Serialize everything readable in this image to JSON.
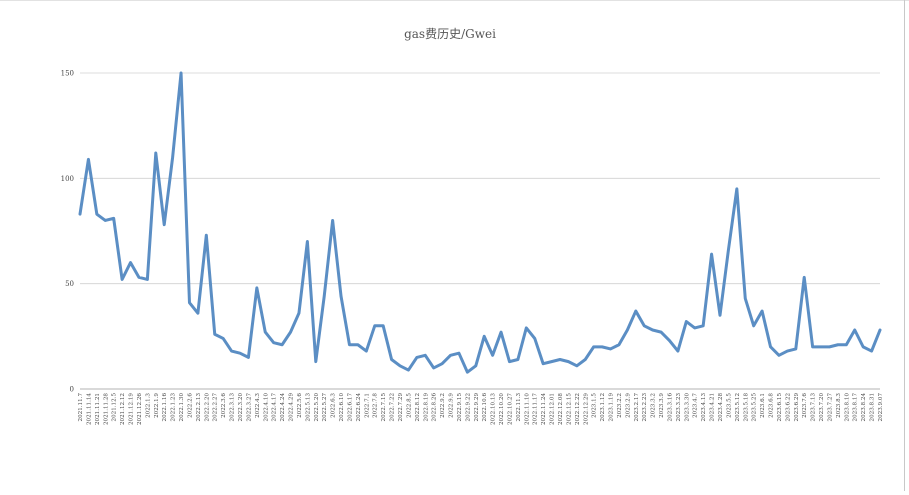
{
  "chart_data": {
    "type": "line",
    "title": "gas费历史/Gwei",
    "xlabel": "",
    "ylabel": "",
    "ylim": [
      0,
      150
    ],
    "yticks": [
      0,
      50,
      100,
      150
    ],
    "grid": "horizontal",
    "legend": "none",
    "line_color": "#5b8ec4",
    "grid_color": "#d0d0d0",
    "categories": [
      "2021.11.7",
      "2021.11.14",
      "2021.11.21",
      "2021.11.28",
      "2021.12.5",
      "2021.12.12",
      "2021.12.19",
      "2021.12.26",
      "2022.1.2",
      "2022.1.9",
      "2022.1.16",
      "2022.1.23",
      "2022.1.30",
      "2022.2.6",
      "2022.2.13",
      "2022.2.20",
      "2022.2.27",
      "2022.3.6",
      "2022.3.13",
      "2022.3.20",
      "2022.3.27",
      "2022.4.3",
      "2022.4.10",
      "2022.4.17",
      "2022.4.24",
      "2022.5.1",
      "2022.5.8",
      "2022.5.15",
      "2022.5.22",
      "2022.5.29",
      "2022.6.5",
      "2022.6.12",
      "2022.6.19",
      "2022.6.26",
      "2022.7.3",
      "2022.7.10",
      "2022.7.17",
      "2022.7.24",
      "2022.7.31",
      "2022.8.7",
      "2022.8.14",
      "2022.8.21",
      "2022.8.28",
      "2022.9.4",
      "2022.9.11",
      "2022.9.18",
      "2022.9.25",
      "2022.10.2",
      "2022.10.9",
      "2022.10.16",
      "2022.10.23",
      "2022.10.30",
      "2022.11.6",
      "2022.11.13",
      "2022.11.20",
      "2022.11.27",
      "2022.12.4",
      "2022.12.11",
      "2022.12.18",
      "2022.12.25",
      "2023.1.1",
      "2023.1.8",
      "2023.1.15",
      "2023.1.22",
      "2023.1.29",
      "2023.2.5",
      "2023.2.12",
      "2023.2.19",
      "2023.2.26",
      "2023.3.5",
      "2023.3.12",
      "2023.3.19",
      "2023.3.26",
      "2023.4.2",
      "2023.4.9",
      "2023.4.16",
      "2023.4.23",
      "2023.4.30",
      "2023.5.7",
      "2023.5.14",
      "2023.5.21",
      "2023.5.28",
      "2023.6.4",
      "2023.6.11",
      "2023.6.18",
      "2023.6.25",
      "2023.7.2",
      "2023.7.9",
      "2023.7.16",
      "2023.7.23",
      "2023.7.30",
      "2023.8.6",
      "2023.8.13",
      "2023.8.20",
      "2023.8.27",
      "2023.9.3"
    ],
    "xtick_labels": [
      "2021.11.7",
      "2021.11.14",
      "2021.11.21",
      "2021.11.28",
      "2021.12.5",
      "2021.12.12",
      "2021.12.19",
      "2021.12.26",
      "2022.1.3",
      "2022.1.9",
      "2022.1.16",
      "2022.1.23",
      "2022.1.30",
      "2022.2.6",
      "2022.2.13",
      "2022.2.20",
      "2022.2.27",
      "2022.3.6",
      "2022.3.13",
      "2022.3.20",
      "2022.3.27",
      "2022.4.3",
      "2022.4.10",
      "2022.4.17",
      "2022.4.24",
      "2022.4.29",
      "2022.5.6",
      "2022.5.13",
      "2022.5.20",
      "2022.5.27",
      "2022.6.3",
      "2022.6.10",
      "2022.6.17",
      "2022.6.24",
      "2022.7.1",
      "2022.7.8",
      "2022.7.15",
      "2022.7.22",
      "2022.7.29",
      "2022.8.5",
      "2022.8.12",
      "2022.8.19",
      "2022.8.26",
      "2022.9.2",
      "2022.9.9",
      "2022.9.15",
      "2022.9.22",
      "2022.9.29",
      "2022.10.6",
      "2022.10.13",
      "2022.10.20",
      "2022.10.27",
      "2022.11.3",
      "2022.11.10",
      "2022.11.17",
      "2022.11.24",
      "2022.12.01",
      "2022.12.08",
      "2022.12.15",
      "2022.12.22",
      "2022.12.29",
      "2023.1.5",
      "2023.1.12",
      "2023.1.19",
      "2023.2.2",
      "2023.2.9",
      "2023.2.17",
      "2023.2.23",
      "2023.3.2",
      "2023.3.9",
      "2023.3.16",
      "2023.3.23",
      "2023.3.30",
      "2023.4.7",
      "2023.4.13",
      "2023.4.21",
      "2023.4.28",
      "2023.5.5",
      "2023.5.12",
      "2023.5.18",
      "2023.5.25",
      "2023.6.1",
      "2023.6.8",
      "2023.6.15",
      "2023.6.22",
      "2023.6.29",
      "2023.7.6",
      "2023.7.13",
      "2023.7.20",
      "2023.7.27",
      "2023.8.3",
      "2023.8.10",
      "2023.8.17",
      "2023.8.24",
      "2023.8.31",
      "2023.9.07"
    ],
    "series": [
      {
        "values": [
          83,
          109,
          83,
          80,
          81,
          52,
          60,
          53,
          52,
          112,
          78,
          110,
          150,
          41,
          36,
          73,
          26,
          24,
          18,
          17,
          15,
          48,
          27,
          22,
          21,
          27,
          36,
          70,
          13,
          44,
          80,
          44,
          21,
          21,
          18,
          30,
          30,
          14,
          11,
          9,
          15,
          16,
          10,
          12,
          16,
          17,
          8,
          11,
          25,
          16,
          27,
          13,
          14,
          29,
          24,
          12,
          13,
          14,
          13,
          11,
          14,
          20,
          20,
          19,
          21,
          28,
          37,
          30,
          28,
          27,
          23,
          18,
          32,
          29,
          30,
          64,
          35,
          66,
          95,
          43,
          30,
          37,
          20,
          16,
          18,
          19,
          53,
          20,
          20,
          20,
          21,
          21,
          28,
          20,
          18,
          28
        ]
      }
    ]
  }
}
